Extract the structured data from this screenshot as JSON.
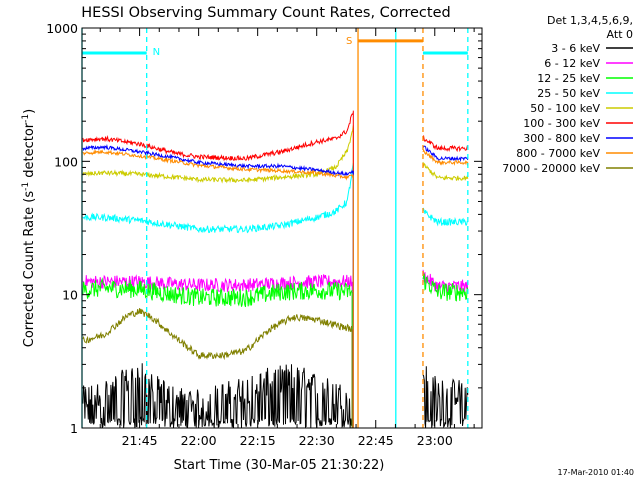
{
  "chart_data": {
    "type": "line",
    "title": "HESSI Observing Summary Count Rates, Corrected",
    "xlabel": "Start Time (30-Mar-05 21:30:22)",
    "ylabel_main": "Corrected Count Rate (s",
    "ylabel_sup1": "-1",
    "ylabel_mid": " detector",
    "ylabel_sup2": "-1",
    "ylabel_end": ")",
    "y_scale": "log",
    "ylim": [
      1,
      1000
    ],
    "xlim": [
      21.5061,
      23.2
    ],
    "x_tick_labels": [
      {
        "label": "21:45",
        "value": 21.75
      },
      {
        "label": "22:00",
        "value": 22.0
      },
      {
        "label": "22:15",
        "value": 22.25
      },
      {
        "label": "22:30",
        "value": 22.5
      },
      {
        "label": "22:45",
        "value": 22.75
      },
      {
        "label": "23:00",
        "value": 23.0
      }
    ],
    "y_tick_labels": [
      {
        "label": "1",
        "value": 1
      },
      {
        "label": "10",
        "value": 10
      },
      {
        "label": "100",
        "value": 100
      },
      {
        "label": "1000",
        "value": 1000
      }
    ],
    "legend": {
      "placement": "right",
      "header1": "Det 1,3,4,5,6,9,",
      "header2": "Att 0"
    },
    "series": [
      {
        "name": "3 - 6 keV",
        "color": "#000000",
        "points": [
          [
            21.51,
            1.6
          ],
          [
            21.6,
            1.8
          ],
          [
            21.7,
            2.2
          ],
          [
            21.75,
            2.5
          ],
          [
            21.8,
            2.0
          ],
          [
            21.9,
            1.6
          ],
          [
            22.0,
            1.5
          ],
          [
            22.1,
            1.7
          ],
          [
            22.2,
            1.9
          ],
          [
            22.3,
            2.2
          ],
          [
            22.4,
            2.4
          ],
          [
            22.5,
            2.0
          ],
          [
            22.6,
            1.7
          ],
          [
            22.65,
            1.8
          ]
        ],
        "noise": 0.5,
        "pos": "hi"
      },
      {
        "name": "6 - 12 keV",
        "color": "#ff00ff",
        "points": [
          [
            21.51,
            12.5
          ],
          [
            21.6,
            12.5
          ],
          [
            21.75,
            12.5
          ],
          [
            21.9,
            12.0
          ],
          [
            22.0,
            11.8
          ],
          [
            22.2,
            11.8
          ],
          [
            22.35,
            12.2
          ],
          [
            22.5,
            12.5
          ],
          [
            22.65,
            12.5
          ]
        ],
        "noise": 0.12
      },
      {
        "name": "12 - 25 keV",
        "color": "#00ff00",
        "points": [
          [
            21.51,
            10.8
          ],
          [
            21.6,
            11.2
          ],
          [
            21.75,
            11.0
          ],
          [
            21.9,
            10.0
          ],
          [
            22.0,
            9.5
          ],
          [
            22.2,
            9.5
          ],
          [
            22.35,
            10.5
          ],
          [
            22.5,
            10.8
          ],
          [
            22.65,
            10.5
          ]
        ],
        "noise": 0.16
      },
      {
        "name": "25 - 50 keV",
        "color": "#00ffff",
        "points": [
          [
            21.51,
            38
          ],
          [
            21.6,
            38
          ],
          [
            21.75,
            36
          ],
          [
            21.9,
            33
          ],
          [
            22.0,
            31
          ],
          [
            22.2,
            31
          ],
          [
            22.35,
            33
          ],
          [
            22.5,
            38
          ],
          [
            22.58,
            42
          ],
          [
            22.63,
            50
          ],
          [
            22.655,
            95
          ]
        ],
        "noise": 0.06
      },
      {
        "name": "50 - 100 keV",
        "color": "#cccc00",
        "points": [
          [
            21.51,
            80
          ],
          [
            21.6,
            82
          ],
          [
            21.75,
            80
          ],
          [
            21.9,
            76
          ],
          [
            22.0,
            73
          ],
          [
            22.2,
            72
          ],
          [
            22.35,
            76
          ],
          [
            22.5,
            80
          ],
          [
            22.58,
            90
          ],
          [
            22.63,
            120
          ],
          [
            22.655,
            180
          ]
        ],
        "noise": 0.04
      },
      {
        "name": "100 - 300 keV",
        "color": "#ff0000",
        "points": [
          [
            21.51,
            145
          ],
          [
            21.6,
            148
          ],
          [
            21.75,
            135
          ],
          [
            21.9,
            115
          ],
          [
            22.0,
            108
          ],
          [
            22.2,
            105
          ],
          [
            22.35,
            118
          ],
          [
            22.5,
            140
          ],
          [
            22.58,
            148
          ],
          [
            22.63,
            170
          ],
          [
            22.655,
            240
          ]
        ],
        "noise": 0.04
      },
      {
        "name": "300 - 800 keV",
        "color": "#0000ff",
        "points": [
          [
            21.51,
            125
          ],
          [
            21.6,
            128
          ],
          [
            21.75,
            118
          ],
          [
            21.9,
            106
          ],
          [
            22.0,
            98
          ],
          [
            22.2,
            92
          ],
          [
            22.35,
            92
          ],
          [
            22.5,
            86
          ],
          [
            22.58,
            82
          ],
          [
            22.63,
            80
          ],
          [
            22.655,
            85
          ]
        ],
        "noise": 0.03
      },
      {
        "name": "800 - 7000 keV",
        "color": "#ff8c00",
        "points": [
          [
            21.51,
            115
          ],
          [
            21.6,
            118
          ],
          [
            21.75,
            110
          ],
          [
            21.9,
            100
          ],
          [
            22.0,
            93
          ],
          [
            22.2,
            87
          ],
          [
            22.35,
            85
          ],
          [
            22.5,
            82
          ],
          [
            22.58,
            78
          ],
          [
            22.63,
            76
          ],
          [
            22.655,
            78
          ]
        ],
        "noise": 0.03
      },
      {
        "name": "7000 - 20000 keV",
        "color": "#808000",
        "points": [
          [
            21.51,
            4.5
          ],
          [
            21.6,
            5.0
          ],
          [
            21.7,
            7.0
          ],
          [
            21.75,
            7.5
          ],
          [
            21.8,
            6.8
          ],
          [
            21.9,
            4.8
          ],
          [
            22.0,
            3.5
          ],
          [
            22.1,
            3.5
          ],
          [
            22.2,
            3.8
          ],
          [
            22.3,
            5.5
          ],
          [
            22.4,
            6.8
          ],
          [
            22.5,
            6.5
          ],
          [
            22.6,
            5.8
          ],
          [
            22.65,
            5.5
          ]
        ],
        "noise": 0.06
      }
    ],
    "post_gap": {
      "x_start": 22.95,
      "x_end": 23.14,
      "values": {
        "3 - 6 keV": [
          2.5,
          1.8
        ],
        "6 - 12 keV": [
          14,
          11.5
        ],
        "12 - 25 keV": [
          13,
          10.5
        ],
        "25 - 50 keV": [
          42,
          35
        ],
        "50 - 100 keV": [
          95,
          75
        ],
        "100 - 300 keV": [
          150,
          125
        ],
        "300 - 800 keV": [
          130,
          105
        ],
        "800 - 7000 keV": [
          120,
          98
        ],
        "7000 - 20000 keV": [
          null,
          null
        ]
      }
    },
    "annotations": {
      "night_label": "N",
      "saa_label": "S",
      "bars": [
        {
          "label": "N",
          "x_start": 21.5061,
          "x_end": 21.78,
          "y": 650,
          "color": "#00ffff"
        },
        {
          "label": "",
          "x_start": 22.95,
          "x_end": 23.14,
          "y": 650,
          "color": "#00ffff"
        },
        {
          "label": "S",
          "x_start": 22.675,
          "x_end": 22.95,
          "y": 800,
          "color": "#ff8c00"
        }
      ],
      "vlines": [
        {
          "x": 21.5061,
          "style": "solid",
          "color": "#00ffff"
        },
        {
          "x": 21.78,
          "style": "dashed",
          "color": "#00ffff"
        },
        {
          "x": 22.675,
          "style": "solid",
          "color": "#ff8c00"
        },
        {
          "x": 22.835,
          "style": "solid",
          "color": "#00ffff"
        },
        {
          "x": 22.95,
          "style": "dashed",
          "color": "#ff8c00"
        },
        {
          "x": 23.14,
          "style": "dashed",
          "color": "#00ffff"
        }
      ]
    },
    "footer_timestamp": "17-Mar-2010 01:40"
  }
}
